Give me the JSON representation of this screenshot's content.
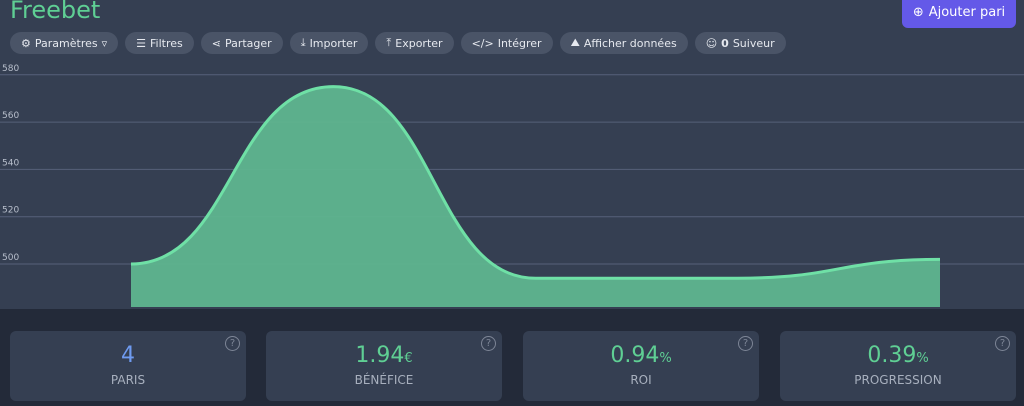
{
  "header": {
    "title": "Freebet",
    "add_label": "Ajouter pari"
  },
  "toolbar": [
    {
      "icon": "gears-icon",
      "label": "Paramètres",
      "suffix": "▿"
    },
    {
      "icon": "sliders-icon",
      "label": "Filtres"
    },
    {
      "icon": "share-icon",
      "label": "Partager"
    },
    {
      "icon": "import-icon",
      "label": "Importer"
    },
    {
      "icon": "export-icon",
      "label": "Exporter"
    },
    {
      "icon": "code-icon",
      "label": "Intégrer"
    },
    {
      "icon": "chart-icon",
      "label": "Afficher données"
    },
    {
      "icon": "users-icon",
      "count": "0",
      "label": "Suiveur"
    }
  ],
  "chart_data": {
    "type": "area",
    "x": [
      0,
      1,
      2,
      3,
      4
    ],
    "values": [
      500,
      575,
      494,
      494,
      501.94
    ],
    "yticks": [
      500,
      520,
      540,
      560,
      580
    ],
    "ylim": [
      482,
      585
    ],
    "grid": true,
    "color": "#5fcf94"
  },
  "stats": [
    {
      "value": "4",
      "unit": "",
      "label": "PARIS",
      "color": "#6f9bf0"
    },
    {
      "value": "1.94",
      "unit": "€",
      "label": "BÉNÉFICE",
      "color": "#5fcf94"
    },
    {
      "value": "0.94",
      "unit": "%",
      "label": "ROI",
      "color": "#5fcf94"
    },
    {
      "value": "0.39",
      "unit": "%",
      "label": "PROGRESSION",
      "color": "#5fcf94"
    }
  ],
  "help_glyph": "?"
}
